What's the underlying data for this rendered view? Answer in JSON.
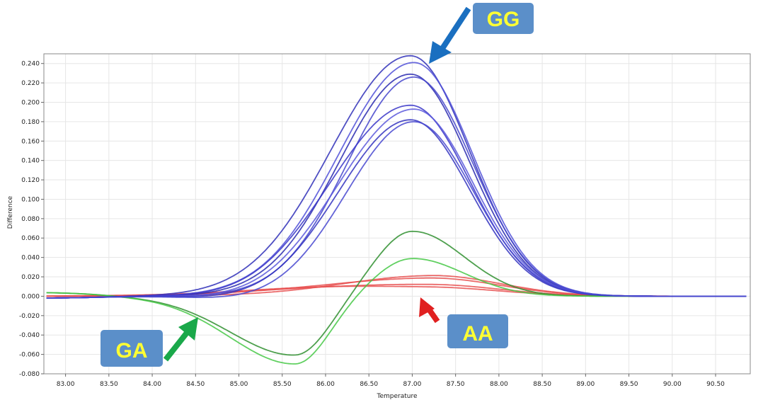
{
  "chart_data": {
    "type": "line",
    "xlabel": "Temperature",
    "ylabel": "Difference",
    "xlim": [
      82.75,
      90.9
    ],
    "ylim": [
      -0.08,
      0.25
    ],
    "x_ticks": [
      "83.00",
      "83.50",
      "84.00",
      "84.50",
      "85.00",
      "85.50",
      "86.00",
      "86.50",
      "87.00",
      "87.50",
      "88.00",
      "88.50",
      "89.00",
      "89.50",
      "90.00",
      "90.50"
    ],
    "y_ticks": [
      "0.240",
      "0.220",
      "0.200",
      "0.180",
      "0.160",
      "0.140",
      "0.120",
      "0.100",
      "0.080",
      "0.060",
      "0.040",
      "0.020",
      "0.000",
      "-0.020",
      "-0.040",
      "-0.060",
      "-0.080"
    ],
    "grid": true,
    "groups": [
      {
        "label": "GG",
        "color": "#3a36c8",
        "peak_temperature": 87.0,
        "peak_values": [
          0.248,
          0.241,
          0.229,
          0.226,
          0.197,
          0.193,
          0.182,
          0.18
        ]
      },
      {
        "label": "GA",
        "color": "#3a9a3a",
        "peak_temperature": 87.0,
        "peak_values": [
          0.067,
          0.039
        ],
        "trough_temperature": 85.65,
        "trough_values": [
          -0.061,
          -0.07
        ]
      },
      {
        "label": "AA",
        "color": "#e85050",
        "peak_temperature": 87.2,
        "peak_values": [
          0.022,
          0.019,
          0.012,
          0.009
        ]
      }
    ],
    "annotations": [
      {
        "text": "GG",
        "points_to": "GG curves peak",
        "arrow_color": "#1a6fc0"
      },
      {
        "text": "GA",
        "points_to": "GA curves",
        "arrow_color": "#1aa84a"
      },
      {
        "text": "AA",
        "points_to": "AA curves",
        "arrow_color": "#e02020"
      }
    ]
  }
}
